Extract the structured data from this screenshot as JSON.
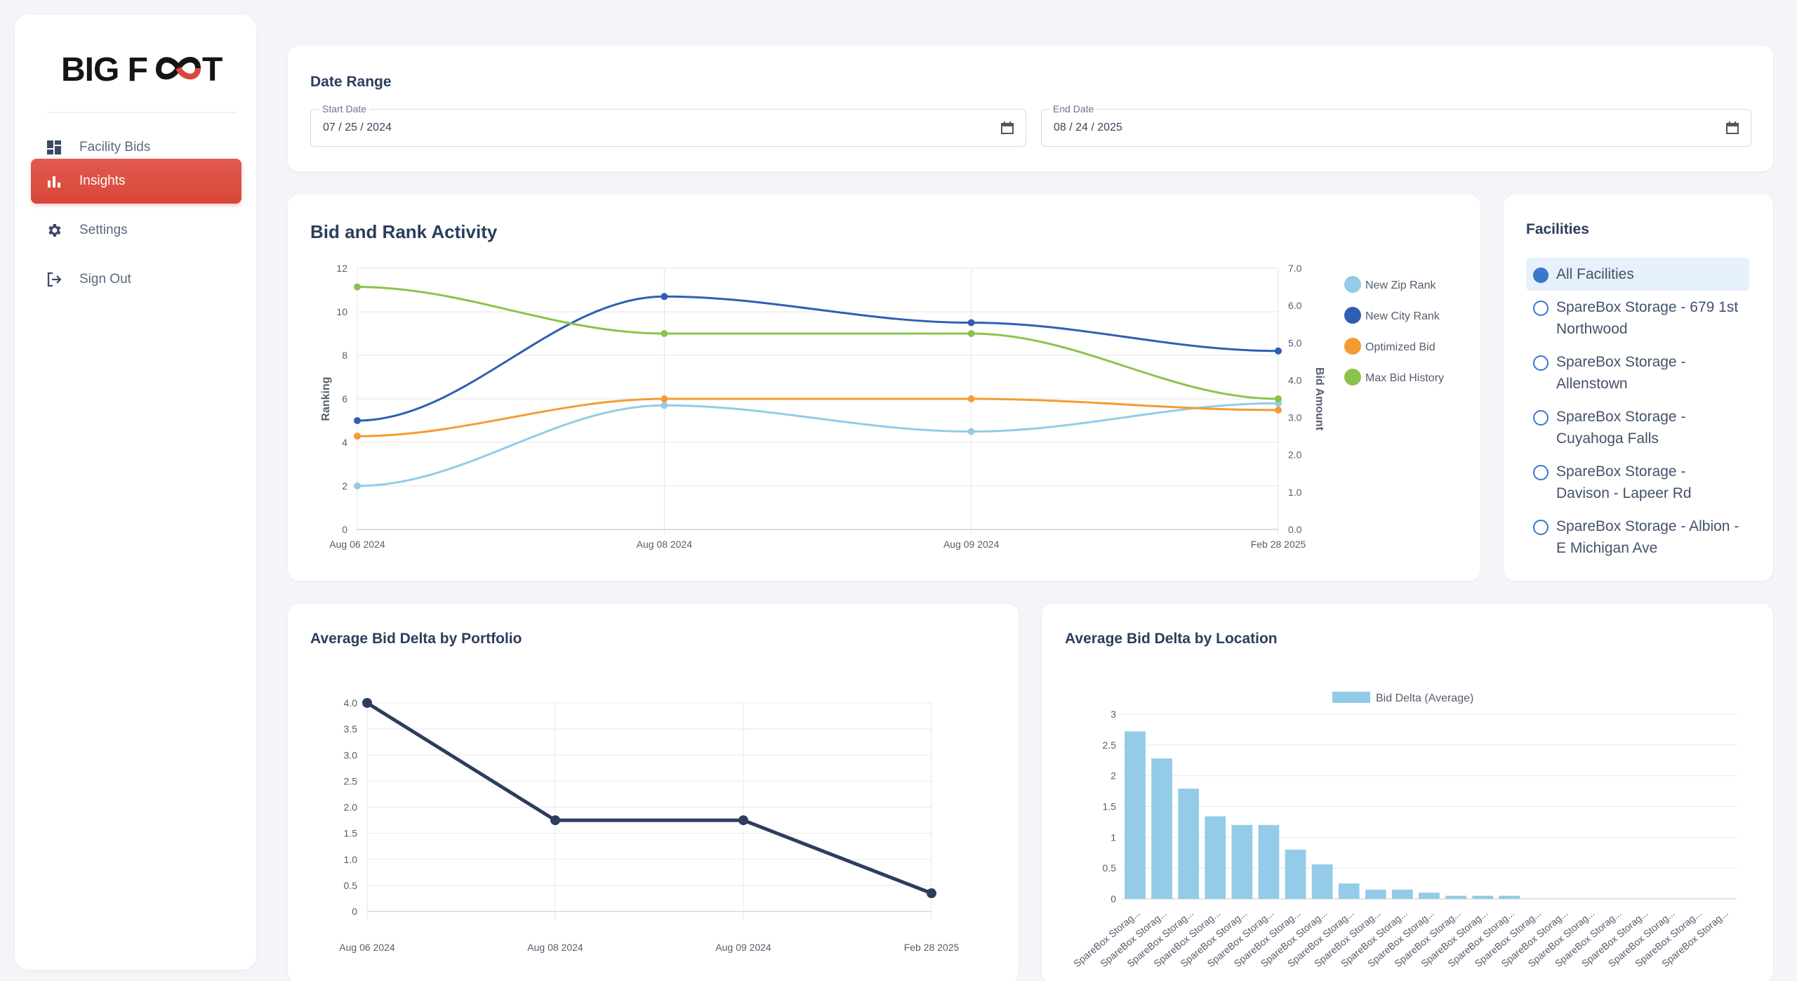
{
  "brand": {
    "logo_text": "BIG FOOT",
    "accent": "#d9463b"
  },
  "sidebar": {
    "items": [
      {
        "label": "Facility Bids",
        "icon": "dashboard-icon",
        "active": false
      },
      {
        "label": "Insights",
        "icon": "bar-chart-icon",
        "active": true
      },
      {
        "label": "Settings",
        "icon": "gear-icon",
        "active": false
      },
      {
        "label": "Sign Out",
        "icon": "sign-out-icon",
        "active": false
      }
    ]
  },
  "date_range": {
    "title": "Date Range",
    "start": {
      "label": "Start Date",
      "value": "07 / 25 / 2024"
    },
    "end": {
      "label": "End Date",
      "value": "08 / 24 / 2025"
    }
  },
  "facilities": {
    "title": "Facilities",
    "items": [
      {
        "name": "All Facilities",
        "selected": true
      },
      {
        "name": "SpareBox Storage - 679 1st Northwood",
        "selected": false
      },
      {
        "name": "SpareBox Storage - Allenstown",
        "selected": false
      },
      {
        "name": "SpareBox Storage - Cuyahoga Falls",
        "selected": false
      },
      {
        "name": "SpareBox Storage - Davison - Lapeer Rd",
        "selected": false
      },
      {
        "name": "SpareBox Storage - Albion - E Michigan Ave",
        "selected": false
      }
    ]
  },
  "chart_data": [
    {
      "id": "bid-rank",
      "type": "line",
      "title": "Bid and Rank Activity",
      "categories": [
        "Aug 06 2024",
        "Aug 08 2024",
        "Aug 09 2024",
        "Feb 28 2025"
      ],
      "ylabel": "Ranking",
      "y2label": "Bid Amount",
      "ylim": [
        0,
        12
      ],
      "y2lim": [
        0,
        7
      ],
      "yticks": [
        "0",
        "2",
        "4",
        "6",
        "8",
        "10",
        "12"
      ],
      "y2ticks": [
        "0.0",
        "1.0",
        "2.0",
        "3.0",
        "4.0",
        "5.0",
        "6.0",
        "7.0"
      ],
      "series": [
        {
          "name": "New Zip Rank",
          "axis": "left",
          "color": "#93cbe8",
          "values": [
            2,
            5.7,
            4.5,
            5.8
          ]
        },
        {
          "name": "New City Rank",
          "axis": "left",
          "color": "#2f5fb3",
          "values": [
            5,
            10.7,
            9.5,
            8.2
          ]
        },
        {
          "name": "Optimized Bid",
          "axis": "right",
          "color": "#f39c34",
          "values": [
            2.5,
            3.5,
            3.5,
            3.2
          ]
        },
        {
          "name": "Max Bid History",
          "axis": "right",
          "color": "#8bc34a",
          "values": [
            6.5,
            5.25,
            5.25,
            3.5
          ]
        }
      ]
    },
    {
      "id": "portfolio",
      "type": "line",
      "title": "Average Bid Delta by Portfolio",
      "categories": [
        "Aug 06 2024",
        "Aug 08 2024",
        "Aug 09 2024",
        "Feb 28 2025"
      ],
      "ylim": [
        0,
        4
      ],
      "yticks": [
        "0",
        "0.5",
        "1.0",
        "1.5",
        "2.0",
        "2.5",
        "3.0",
        "3.5",
        "4.0"
      ],
      "series": [
        {
          "name": "Average Bid Delta",
          "color": "#2c3e5c",
          "values": [
            4.0,
            1.75,
            1.75,
            0.35
          ]
        }
      ]
    },
    {
      "id": "location",
      "type": "bar",
      "title": "Average Bid Delta by Location",
      "legend": "Bid Delta (Average)",
      "color": "#93cbe8",
      "ylim": [
        0,
        3
      ],
      "yticks": [
        "0",
        "0.5",
        "1",
        "1.5",
        "2",
        "2.5",
        "3"
      ],
      "category_label": "SpareBox Storag...",
      "values": [
        2.72,
        2.28,
        1.79,
        1.34,
        1.2,
        1.2,
        0.8,
        0.56,
        0.25,
        0.15,
        0.15,
        0.1,
        0.05,
        0.05,
        0.05,
        0,
        0,
        0,
        0,
        0,
        0,
        0,
        0
      ]
    }
  ]
}
